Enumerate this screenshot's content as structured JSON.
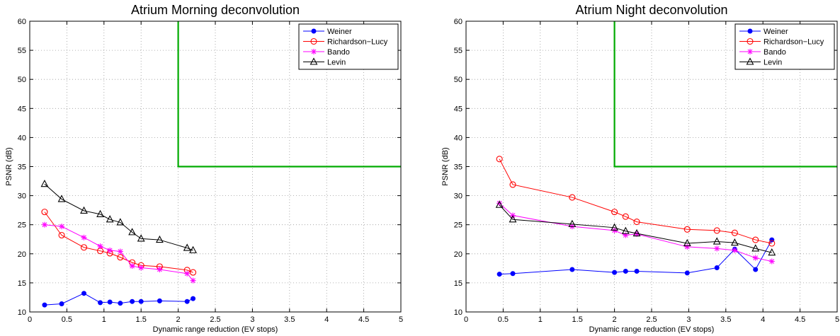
{
  "chart_data": [
    {
      "type": "line",
      "title": "Atrium Morning deconvolution",
      "xlabel": "Dynamic range reduction (EV stops)",
      "ylabel": "PSNR (dB)",
      "xlim": [
        0,
        5
      ],
      "ylim": [
        10,
        60
      ],
      "xticks": [
        "0",
        "0.5",
        "1",
        "1.5",
        "2",
        "2.5",
        "3",
        "3.5",
        "4",
        "4.5",
        "5"
      ],
      "yticks": [
        "10",
        "15",
        "20",
        "25",
        "30",
        "35",
        "40",
        "45",
        "50",
        "55",
        "60"
      ],
      "grid": true,
      "legend_position": "top-right",
      "threshold": {
        "color": "#00aa00",
        "x": [
          2,
          2,
          5
        ],
        "y": [
          60,
          35,
          35
        ]
      },
      "series": [
        {
          "name": "Weiner",
          "color": "#0000ff",
          "marker": "dot",
          "x": [
            0.2,
            0.43,
            0.73,
            0.95,
            1.08,
            1.22,
            1.38,
            1.5,
            1.75,
            2.12,
            2.2
          ],
          "y": [
            11.2,
            11.4,
            13.2,
            11.6,
            11.7,
            11.5,
            11.8,
            11.8,
            11.9,
            11.8,
            12.3
          ]
        },
        {
          "name": "Richardson−Lucy",
          "color": "#ff0000",
          "marker": "circle",
          "x": [
            0.2,
            0.43,
            0.73,
            0.95,
            1.08,
            1.22,
            1.38,
            1.5,
            1.75,
            2.12,
            2.2
          ],
          "y": [
            27.2,
            23.2,
            21.1,
            20.5,
            20.1,
            19.4,
            18.5,
            18.0,
            17.8,
            17.2,
            16.8
          ]
        },
        {
          "name": "Bando",
          "color": "#ff00ff",
          "marker": "star",
          "x": [
            0.2,
            0.43,
            0.73,
            0.95,
            1.08,
            1.22,
            1.38,
            1.5,
            1.75,
            2.12,
            2.2
          ],
          "y": [
            25.0,
            24.7,
            22.8,
            21.3,
            20.6,
            20.4,
            17.9,
            17.6,
            17.3,
            16.6,
            15.4
          ]
        },
        {
          "name": "Levin",
          "color": "#000000",
          "marker": "triangle",
          "x": [
            0.2,
            0.43,
            0.73,
            0.95,
            1.08,
            1.22,
            1.38,
            1.5,
            1.75,
            2.12,
            2.2
          ],
          "y": [
            32.0,
            29.4,
            27.4,
            26.8,
            25.9,
            25.4,
            23.7,
            22.6,
            22.4,
            21.0,
            20.6
          ]
        }
      ]
    },
    {
      "type": "line",
      "title": "Atrium Night deconvolution",
      "xlabel": "Dynamic range reduction (EV stops)",
      "ylabel": "PSNR (dB)",
      "xlim": [
        0,
        5
      ],
      "ylim": [
        10,
        60
      ],
      "xticks": [
        "0",
        "0.5",
        "1",
        "1.5",
        "2",
        "2.5",
        "3",
        "3.5",
        "4",
        "4.5",
        "5"
      ],
      "yticks": [
        "10",
        "15",
        "20",
        "25",
        "30",
        "35",
        "40",
        "45",
        "50",
        "55",
        "60"
      ],
      "grid": true,
      "legend_position": "top-right",
      "threshold": {
        "color": "#00aa00",
        "x": [
          2,
          2,
          5
        ],
        "y": [
          60,
          35,
          35
        ]
      },
      "series": [
        {
          "name": "Weiner",
          "color": "#0000ff",
          "marker": "dot",
          "x": [
            0.45,
            0.63,
            1.43,
            2.0,
            2.15,
            2.3,
            2.98,
            3.38,
            3.62,
            3.9,
            4.12
          ],
          "y": [
            16.5,
            16.6,
            17.3,
            16.8,
            17.0,
            17.0,
            16.7,
            17.6,
            20.8,
            17.3,
            22.4
          ]
        },
        {
          "name": "Richardson−Lucy",
          "color": "#ff0000",
          "marker": "circle",
          "x": [
            0.45,
            0.63,
            1.43,
            2.0,
            2.15,
            2.3,
            2.98,
            3.38,
            3.62,
            3.9,
            4.12
          ],
          "y": [
            36.3,
            31.9,
            29.7,
            27.2,
            26.4,
            25.5,
            24.2,
            24.0,
            23.6,
            22.4,
            21.8
          ]
        },
        {
          "name": "Bando",
          "color": "#ff00ff",
          "marker": "star",
          "x": [
            0.45,
            0.63,
            1.43,
            2.0,
            2.15,
            2.3,
            2.98,
            3.38,
            3.62,
            3.9,
            4.12
          ],
          "y": [
            28.7,
            26.6,
            24.7,
            24.0,
            23.2,
            23.4,
            21.2,
            20.9,
            20.6,
            19.3,
            18.7
          ]
        },
        {
          "name": "Levin",
          "color": "#000000",
          "marker": "triangle",
          "x": [
            0.45,
            0.63,
            1.43,
            2.0,
            2.15,
            2.3,
            2.98,
            3.38,
            3.62,
            3.9,
            4.12
          ],
          "y": [
            28.4,
            25.9,
            25.1,
            24.5,
            23.9,
            23.5,
            21.8,
            22.1,
            21.9,
            20.9,
            20.2
          ]
        }
      ]
    }
  ]
}
